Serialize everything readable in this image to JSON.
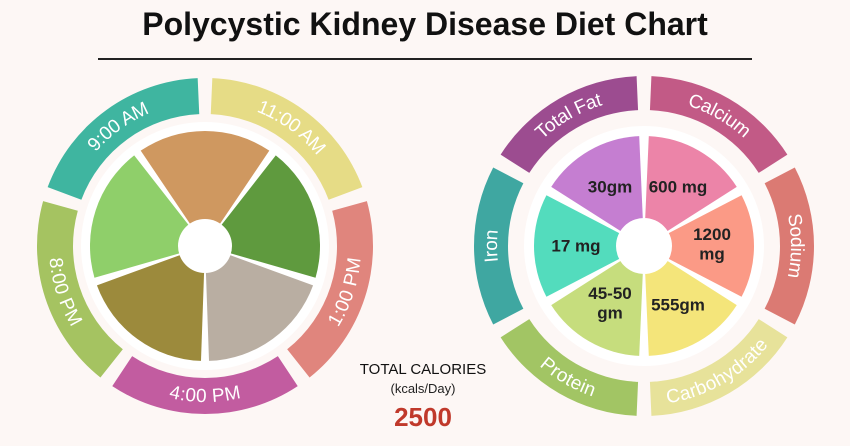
{
  "title": "Polycystic Kidney Disease Diet Chart",
  "colors": {
    "background": "#fdf7f5",
    "calorie_value": "#c0392b"
  },
  "meal_wheel": {
    "segments": [
      {
        "label": "9:00 AM",
        "color": "#3fb5a0"
      },
      {
        "label": "11:00 AM",
        "color": "#e6dc86"
      },
      {
        "label": "1:00 PM",
        "color": "#e0857d"
      },
      {
        "label": "4:00 PM",
        "color": "#c25ca0"
      },
      {
        "label": "8:00 PM",
        "color": "#a5c361"
      }
    ],
    "photos": [
      {
        "name": "paratha-photo",
        "color": "#cf9860"
      },
      {
        "name": "green-peas-photo",
        "color": "#5f9a3e"
      },
      {
        "name": "rice-bowl-photo",
        "color": "#b9aea2"
      },
      {
        "name": "green-tea-photo",
        "color": "#9c8a3c"
      },
      {
        "name": "cucumber-photo",
        "color": "#8fcf6a"
      }
    ]
  },
  "nutrient_wheel": {
    "segments": [
      {
        "label": "Total Fat",
        "color": "#9c4c90"
      },
      {
        "label": "Calcium",
        "color": "#c25a86"
      },
      {
        "label": "Sodium",
        "color": "#db7a73"
      },
      {
        "label": "Carbohydrate",
        "color": "#e7e29a"
      },
      {
        "label": "Protein",
        "color": "#a2c564"
      },
      {
        "label": "Iron",
        "color": "#3fa7a1"
      }
    ],
    "values": [
      {
        "text": "30gm",
        "color": "#c57ed1"
      },
      {
        "text": "600 mg",
        "color": "#ec84a8"
      },
      {
        "text": "1200 mg",
        "color": "#fb9a86"
      },
      {
        "text": "555gm",
        "color": "#f4e57a"
      },
      {
        "text": "45-50 gm",
        "color": "#c6dd7d"
      },
      {
        "text": "17 mg",
        "color": "#53dcbd"
      }
    ]
  },
  "calories": {
    "label": "TOTAL CALORIES",
    "unit": "(kcals/Day)",
    "value": "2500"
  }
}
